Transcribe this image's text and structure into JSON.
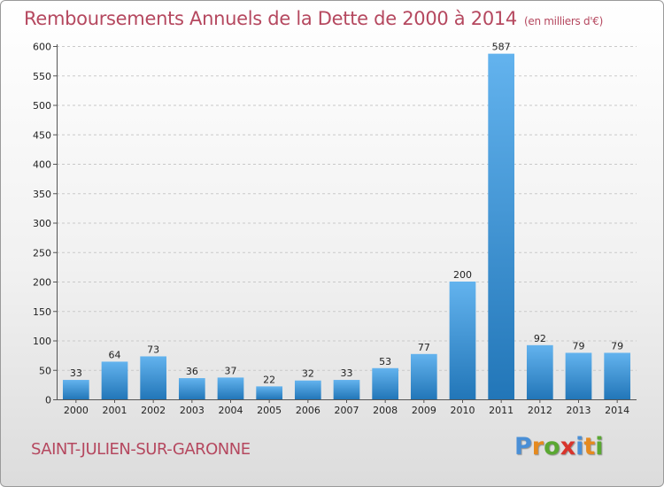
{
  "header": {
    "title": "Remboursements Annuels de la Dette de 2000 à 2014",
    "unit": "(en milliers d'€)"
  },
  "footer": {
    "commune": "SAINT-JULIEN-SUR-GARONNE",
    "brand": "Proxiti",
    "brand_colors": [
      "#4a8fd6",
      "#e58a1f",
      "#5aa832",
      "#d8342c",
      "#4a8fd6",
      "#e58a1f",
      "#5aa832"
    ]
  },
  "colors": {
    "bar_light": "#63b3ee",
    "bar_dark": "#2276b8",
    "title": "#b5485f"
  },
  "chart_data": {
    "type": "bar",
    "categories": [
      "2000",
      "2001",
      "2002",
      "2003",
      "2004",
      "2005",
      "2006",
      "2007",
      "2008",
      "2009",
      "2010",
      "2011",
      "2012",
      "2013",
      "2014"
    ],
    "values": [
      33,
      64,
      73,
      36,
      37,
      22,
      32,
      33,
      53,
      77,
      200,
      587,
      92,
      79,
      79
    ],
    "ylim": [
      0,
      600
    ],
    "yticks": [
      0,
      50,
      100,
      150,
      200,
      250,
      300,
      350,
      400,
      450,
      500,
      550,
      600
    ],
    "grid": true,
    "data_labels": true
  }
}
